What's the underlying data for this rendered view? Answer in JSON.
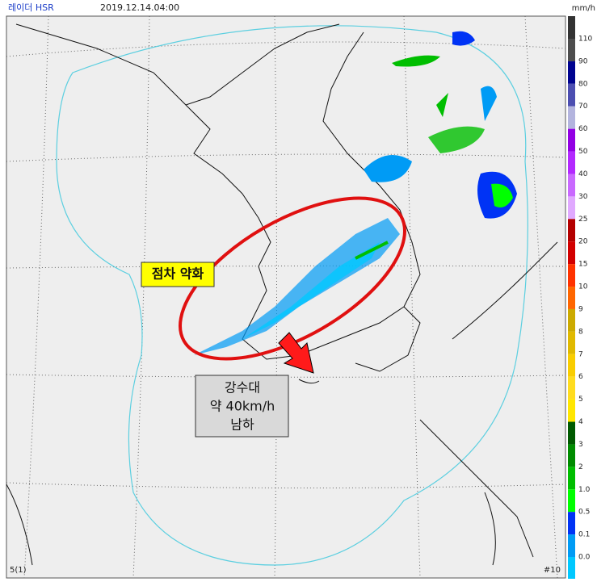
{
  "header": {
    "product": "레이더 HSR",
    "time": "2019.12.14.04:00",
    "unit": "mm/h"
  },
  "legend": [
    {
      "label": "110",
      "color": "#4d4d4d"
    },
    {
      "label": "90",
      "color": "#000390"
    },
    {
      "label": "80",
      "color": "#4c4eb1"
    },
    {
      "label": "70",
      "color": "#b3b4de"
    },
    {
      "label": "60",
      "color": "#9300e4"
    },
    {
      "label": "50",
      "color": "#b329ff"
    },
    {
      "label": "40",
      "color": "#c969ff"
    },
    {
      "label": "30",
      "color": "#e0a9ff"
    },
    {
      "label": "25",
      "color": "#b40000"
    },
    {
      "label": "20",
      "color": "#d20000"
    },
    {
      "label": "15",
      "color": "#ff3300"
    },
    {
      "label": "10",
      "color": "#ff6600"
    },
    {
      "label": "9",
      "color": "#ccaa00"
    },
    {
      "label": "8",
      "color": "#e0b900"
    },
    {
      "label": "7",
      "color": "#f9cd00"
    },
    {
      "label": "6",
      "color": "#ffdc1f"
    },
    {
      "label": "5",
      "color": "#ffe600"
    },
    {
      "label": "4",
      "color": "#005a00"
    },
    {
      "label": "3",
      "color": "#008c00"
    },
    {
      "label": "2",
      "color": "#00be00"
    },
    {
      "label": "1.0",
      "color": "#00ff00"
    },
    {
      "label": "0.5",
      "color": "#0033f5"
    },
    {
      "label": "0.1",
      "color": "#009bf5"
    },
    {
      "label": "0.0",
      "color": "#00c8ff"
    }
  ],
  "annotations": {
    "weakening": "점차 약화",
    "band": [
      "강수대",
      "약 40km/h",
      "남하"
    ]
  },
  "footer": {
    "left": "5(1)",
    "right": "#10"
  }
}
